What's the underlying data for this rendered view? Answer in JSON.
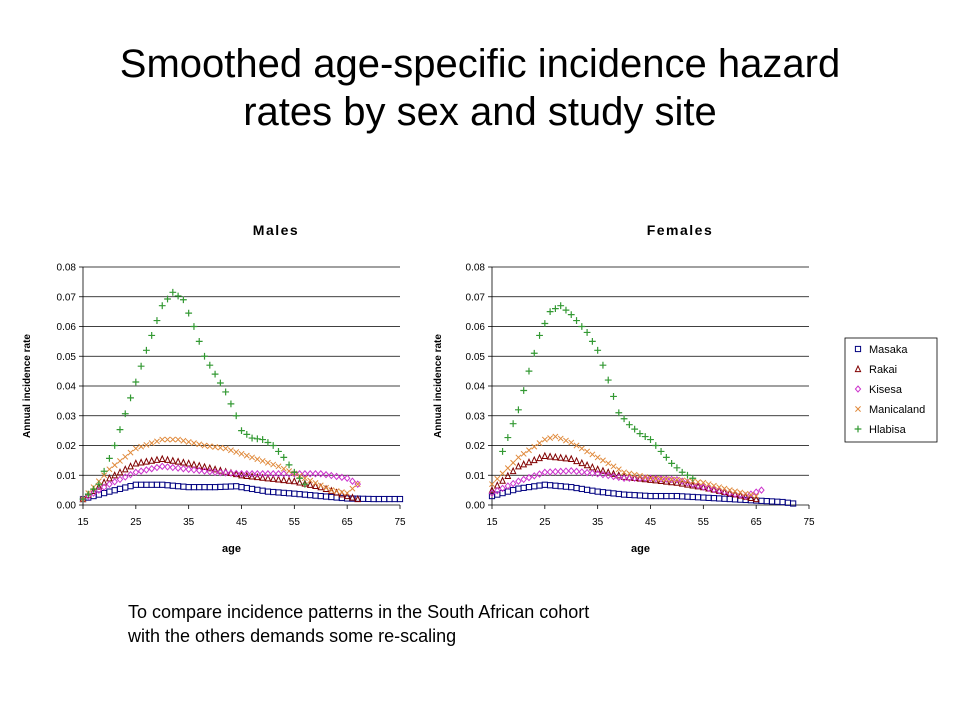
{
  "slide": {
    "title_lines": [
      "Smoothed age-specific incidence hazard",
      "rates by sex and study site"
    ],
    "caption_lines": [
      "To compare incidence patterns in the South African cohort",
      "with the others demands some re-scaling"
    ]
  },
  "legend": {
    "entries": [
      {
        "name": "Masaka",
        "marker": "square",
        "color": "#000080"
      },
      {
        "name": "Rakai",
        "marker": "triangle",
        "color": "#800000"
      },
      {
        "name": "Kisesa",
        "marker": "diamond",
        "color": "#cc33cc"
      },
      {
        "name": "Manicaland",
        "marker": "x",
        "color": "#e08a3c"
      },
      {
        "name": "Hlabisa",
        "marker": "plus",
        "color": "#339933"
      }
    ]
  },
  "chart_data": [
    {
      "type": "scatter",
      "title": "Males",
      "xlabel": "age",
      "ylabel": "Annual incidence rate",
      "xlim": [
        15,
        75
      ],
      "ylim": [
        0,
        0.08
      ],
      "xticks": [
        "15",
        "25",
        "35",
        "45",
        "55",
        "65",
        "75"
      ],
      "yticks": [
        "0.00",
        "0.01",
        "0.02",
        "0.03",
        "0.04",
        "0.05",
        "0.06",
        "0.07",
        "0.08"
      ],
      "grid": "horizontal",
      "series": [
        {
          "name": "Masaka",
          "points": [
            [
              15,
              0.002
            ],
            [
              20,
              0.0045
            ],
            [
              25,
              0.0068
            ],
            [
              30,
              0.0068
            ],
            [
              35,
              0.006
            ],
            [
              40,
              0.006
            ],
            [
              44,
              0.0063
            ],
            [
              50,
              0.0045
            ],
            [
              55,
              0.0038
            ],
            [
              60,
              0.003
            ],
            [
              65,
              0.0022
            ],
            [
              70,
              0.002
            ],
            [
              75,
              0.002
            ]
          ]
        },
        {
          "name": "Rakai",
          "points": [
            [
              15,
              0.002
            ],
            [
              20,
              0.009
            ],
            [
              25,
              0.014
            ],
            [
              30,
              0.0155
            ],
            [
              35,
              0.014
            ],
            [
              40,
              0.012
            ],
            [
              45,
              0.01
            ],
            [
              50,
              0.009
            ],
            [
              55,
              0.008
            ],
            [
              60,
              0.006
            ],
            [
              65,
              0.003
            ],
            [
              67,
              0.002
            ]
          ]
        },
        {
          "name": "Kisesa",
          "points": [
            [
              15,
              0.002
            ],
            [
              20,
              0.007
            ],
            [
              25,
              0.011
            ],
            [
              30,
              0.013
            ],
            [
              35,
              0.012
            ],
            [
              40,
              0.011
            ],
            [
              45,
              0.0105
            ],
            [
              50,
              0.0105
            ],
            [
              55,
              0.0105
            ],
            [
              60,
              0.0105
            ],
            [
              65,
              0.009
            ],
            [
              67,
              0.007
            ]
          ]
        },
        {
          "name": "Manicaland",
          "points": [
            [
              15,
              0.002
            ],
            [
              20,
              0.012
            ],
            [
              25,
              0.019
            ],
            [
              30,
              0.022
            ],
            [
              33,
              0.022
            ],
            [
              38,
              0.02
            ],
            [
              42,
              0.019
            ],
            [
              47,
              0.016
            ],
            [
              52,
              0.013
            ],
            [
              57,
              0.009
            ],
            [
              62,
              0.005
            ],
            [
              65,
              0.004
            ],
            [
              67,
              0.007
            ]
          ]
        },
        {
          "name": "Hlabisa",
          "points": [
            [
              15,
              0.002
            ],
            [
              18,
              0.007
            ],
            [
              21,
              0.02
            ],
            [
              24,
              0.036
            ],
            [
              27,
              0.052
            ],
            [
              30,
              0.067
            ],
            [
              32,
              0.0715
            ],
            [
              34,
              0.069
            ],
            [
              36,
              0.06
            ],
            [
              38,
              0.05
            ],
            [
              40,
              0.044
            ],
            [
              42,
              0.038
            ],
            [
              44,
              0.03
            ],
            [
              45,
              0.025
            ],
            [
              47,
              0.0225
            ],
            [
              49,
              0.022
            ],
            [
              51,
              0.02
            ],
            [
              53,
              0.016
            ],
            [
              55,
              0.011
            ],
            [
              57,
              0.007
            ]
          ]
        }
      ]
    },
    {
      "type": "scatter",
      "title": "Females",
      "xlabel": "age",
      "ylabel": "Annual incidence rate",
      "xlim": [
        15,
        75
      ],
      "ylim": [
        0,
        0.08
      ],
      "xticks": [
        "15",
        "25",
        "35",
        "45",
        "55",
        "65",
        "75"
      ],
      "yticks": [
        "0.00",
        "0.01",
        "0.02",
        "0.03",
        "0.04",
        "0.05",
        "0.06",
        "0.07",
        "0.08"
      ],
      "grid": "horizontal",
      "series": [
        {
          "name": "Masaka",
          "points": [
            [
              15,
              0.003
            ],
            [
              20,
              0.0055
            ],
            [
              25,
              0.0068
            ],
            [
              30,
              0.006
            ],
            [
              35,
              0.0045
            ],
            [
              40,
              0.0035
            ],
            [
              45,
              0.003
            ],
            [
              50,
              0.003
            ],
            [
              55,
              0.0025
            ],
            [
              60,
              0.002
            ],
            [
              65,
              0.0015
            ],
            [
              70,
              0.001
            ],
            [
              72,
              0.0005
            ]
          ]
        },
        {
          "name": "Rakai",
          "points": [
            [
              15,
              0.005
            ],
            [
              20,
              0.013
            ],
            [
              25,
              0.0165
            ],
            [
              30,
              0.0155
            ],
            [
              35,
              0.012
            ],
            [
              40,
              0.0095
            ],
            [
              45,
              0.0085
            ],
            [
              50,
              0.0075
            ],
            [
              55,
              0.006
            ],
            [
              60,
              0.004
            ],
            [
              65,
              0.002
            ]
          ]
        },
        {
          "name": "Kisesa",
          "points": [
            [
              15,
              0.004
            ],
            [
              20,
              0.008
            ],
            [
              25,
              0.011
            ],
            [
              30,
              0.0115
            ],
            [
              35,
              0.0105
            ],
            [
              40,
              0.009
            ],
            [
              45,
              0.009
            ],
            [
              50,
              0.0085
            ],
            [
              55,
              0.006
            ],
            [
              60,
              0.004
            ],
            [
              63,
              0.003
            ],
            [
              66,
              0.005
            ]
          ]
        },
        {
          "name": "Manicaland",
          "points": [
            [
              15,
              0.007
            ],
            [
              20,
              0.016
            ],
            [
              25,
              0.022
            ],
            [
              27,
              0.023
            ],
            [
              30,
              0.021
            ],
            [
              35,
              0.016
            ],
            [
              40,
              0.011
            ],
            [
              45,
              0.009
            ],
            [
              50,
              0.0085
            ],
            [
              55,
              0.0075
            ],
            [
              60,
              0.005
            ],
            [
              65,
              0.003
            ]
          ]
        },
        {
          "name": "Hlabisa",
          "points": [
            [
              17,
              0.018
            ],
            [
              20,
              0.032
            ],
            [
              22,
              0.045
            ],
            [
              24,
              0.057
            ],
            [
              26,
              0.065
            ],
            [
              28,
              0.067
            ],
            [
              30,
              0.064
            ],
            [
              33,
              0.058
            ],
            [
              35,
              0.052
            ],
            [
              37,
              0.042
            ],
            [
              39,
              0.031
            ],
            [
              41,
              0.027
            ],
            [
              43,
              0.024
            ],
            [
              45,
              0.022
            ],
            [
              47,
              0.018
            ],
            [
              49,
              0.014
            ],
            [
              51,
              0.011
            ],
            [
              53,
              0.009
            ]
          ]
        }
      ]
    }
  ]
}
